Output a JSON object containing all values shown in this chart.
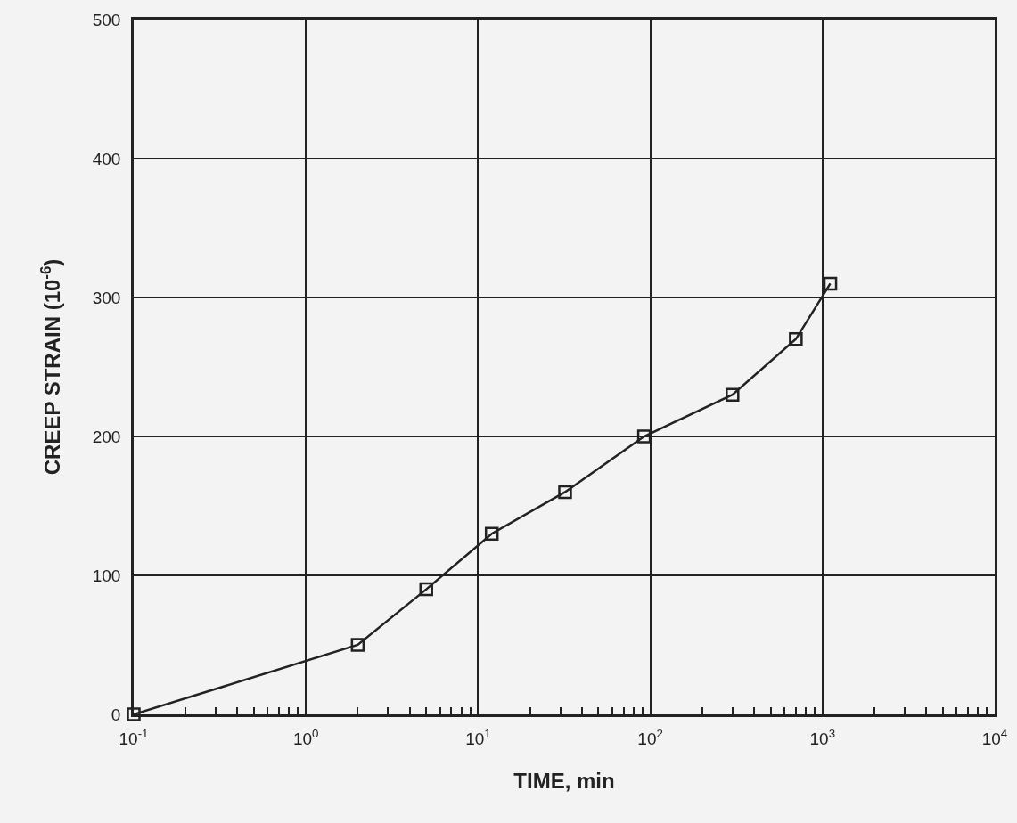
{
  "chart_data": {
    "type": "line",
    "xlabel": "TIME, min",
    "ylabel": "CREEP STRAIN (10$^{-6}$)",
    "x": [
      0.1,
      2,
      5,
      12,
      32,
      92,
      300,
      700,
      1110
    ],
    "series": [
      {
        "color": "#222222",
        "values": [
          0,
          50,
          90,
          130,
          160,
          200,
          230,
          270,
          310
        ]
      }
    ],
    "log": "x",
    "marker": "square",
    "line_style": "solid",
    "grid": true,
    "xlim": [
      0.1,
      10000
    ],
    "xticks": [
      {
        "value": 0.1,
        "label": "10$^{-1}$"
      },
      {
        "value": 1,
        "label": "10$^{0}$"
      },
      {
        "value": 10,
        "label": "10$^{1}$"
      },
      {
        "value": 100,
        "label": "10$^{2}$"
      },
      {
        "value": 1000,
        "label": "10$^{3}$"
      },
      {
        "value": 10000,
        "label": "10$^{4}$"
      }
    ],
    "ylim": [
      0,
      500
    ],
    "yticks": [
      0,
      100,
      200,
      300,
      400,
      500
    ]
  }
}
